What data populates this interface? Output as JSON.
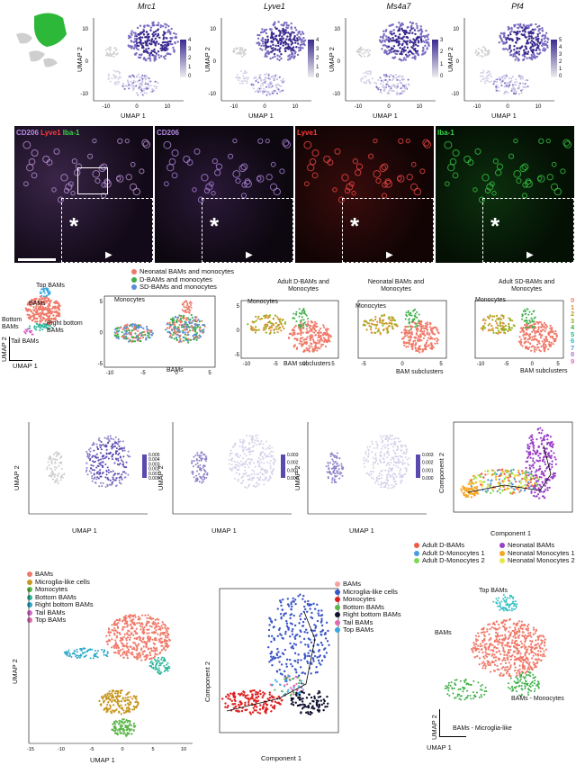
{
  "row1": {
    "genes": [
      "Mrc1",
      "Lyve1",
      "Ms4a7",
      "Pf4"
    ],
    "scales": [
      [
        "4",
        "3",
        "2",
        "1",
        "0"
      ],
      [
        "4",
        "3",
        "2",
        "1",
        "0"
      ],
      [
        "3",
        "2",
        "1",
        "0"
      ],
      [
        "5",
        "4",
        "3",
        "2",
        "1",
        "0"
      ]
    ],
    "ylabel": "UMAP 2",
    "xlabel": "UMAP 1",
    "yticks": [
      "10",
      "0",
      "-10"
    ],
    "xticks": [
      "-10",
      "0",
      "10"
    ],
    "color_high": "#3b2a8f",
    "color_low": "#d9d4ec"
  },
  "row2": {
    "channels": [
      {
        "text": "CD206",
        "color": "#b68be6"
      },
      {
        "text": "Lyve1",
        "color": "#ff3a3a"
      },
      {
        "text": "Iba-1",
        "color": "#3ad24a"
      }
    ],
    "asterisk": "*",
    "arrow": "▶"
  },
  "row3": {
    "overview_labels": [
      "Top BAMs",
      "BAMs",
      "Bottom BAMs",
      "Right bottom BAMs",
      "Tail BAMs"
    ],
    "umap2": "UMAP 2",
    "umap1": "UMAP 1",
    "legend": [
      {
        "label": "Neonatal BAMs and monocytes",
        "color": "#f07a6a"
      },
      {
        "label": "D-BAMs and monocytes",
        "color": "#3fae49"
      },
      {
        "label": "SD-BAMs and monocytes",
        "color": "#5b8fd6"
      }
    ],
    "panel_a": {
      "monocytes": "Monocytes",
      "bams": "BAMs",
      "xticks": [
        "-10",
        "-5",
        "0",
        "5"
      ],
      "yticks": [
        "5",
        "0",
        "-5"
      ]
    },
    "panel_b": {
      "title": "Adult D-BAMs and Monocytes",
      "monocytes": "Monocytes",
      "subclusters": "BAM subclusters",
      "xticks": [
        "-10",
        "-5",
        "0",
        "5"
      ],
      "yticks": [
        "5",
        "0",
        "-5"
      ]
    },
    "panel_c": {
      "title": "Neonatal BAMs and Monocytes",
      "monocytes": "Monocytes",
      "subclusters": "BAM subclusters",
      "xticks": [
        "-5",
        "0",
        "5"
      ]
    },
    "panel_d": {
      "title": "Adult SD-BAMs and Monocytes",
      "monocytes": "Monocytes",
      "subclusters": "BAM subclusters",
      "xticks": [
        "-10",
        "-5",
        "0",
        "5"
      ]
    },
    "cluster_nums": [
      "0",
      "1",
      "2",
      "3",
      "4",
      "5",
      "6",
      "7",
      "8",
      "9"
    ],
    "cluster_colors": [
      "#f07a6a",
      "#e0903a",
      "#b9a21c",
      "#8fb31f",
      "#3fb049",
      "#2eb38a",
      "#2bb5c4",
      "#4a9be0",
      "#b07ae0",
      "#e06ac8"
    ]
  },
  "row4": {
    "umap2": "UMAP 2",
    "umap1": "UMAP 1",
    "scales": [
      [
        "0.005",
        "0.004",
        "0.003",
        "0.002",
        "0.001",
        "0.000"
      ],
      [
        "0.003",
        "0.002",
        "0.001",
        "0.000"
      ],
      [
        "0.003",
        "0.002",
        "0.001",
        "0.000"
      ]
    ],
    "traj": {
      "ylabel": "Component 2",
      "xlabel": "Component 1"
    },
    "legend": [
      {
        "label": "Adult D-BAMs",
        "color": "#f05a4a"
      },
      {
        "label": "Adult D-Monocytes 1",
        "color": "#4a9be0"
      },
      {
        "label": "Adult D-Monocytes 2",
        "color": "#7ed957"
      },
      {
        "label": "Neonatal BAMs",
        "color": "#9b3fc7"
      },
      {
        "label": "Neonatal Monocytes 1",
        "color": "#f5a623"
      },
      {
        "label": "Neonatal Monocytes 2",
        "color": "#e6e84a"
      }
    ]
  },
  "row5": {
    "legend": [
      {
        "label": "BAMs",
        "color": "#f07a6a"
      },
      {
        "label": "Microglia-like cells",
        "color": "#c8961f"
      },
      {
        "label": "Monocytes",
        "color": "#5cb64a"
      },
      {
        "label": "Bottom BAMs",
        "color": "#2bb59a"
      },
      {
        "label": "Right bottom BAMs",
        "color": "#2aa8c8"
      },
      {
        "label": "Tail BAMs",
        "color": "#d66ac8"
      },
      {
        "label": "Top BAMs",
        "color": "#e06ab0"
      }
    ],
    "umap2": "UMAP 2",
    "umap1": "UMAP 1",
    "xticks": [
      "-15",
      "-10",
      "-5",
      "0",
      "5",
      "10"
    ],
    "traj_legend": [
      {
        "label": "BAMs",
        "color": "#f4a3a0"
      },
      {
        "label": "Microglia-like cells",
        "color": "#3a55c8"
      },
      {
        "label": "Monocytes",
        "color": "#e02020"
      },
      {
        "label": "Bottom BAMs",
        "color": "#5cb64a"
      },
      {
        "label": "Right bottom BAMs",
        "color": "#101030"
      },
      {
        "label": "Tail BAMs",
        "color": "#e06ab0"
      },
      {
        "label": "Top BAMs",
        "color": "#3aa8e0"
      }
    ],
    "traj": {
      "ylabel": "Component 2",
      "xlabel": "Component 1"
    },
    "right_labels": {
      "top": "Top BAMs",
      "bams": "BAMs",
      "mono": "BAMs - Monocytes",
      "micro": "BAMs - Microglia-like"
    }
  }
}
